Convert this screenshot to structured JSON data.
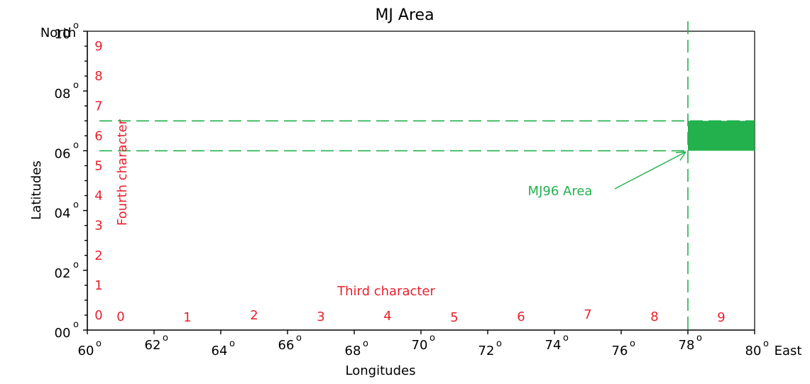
{
  "title": "MJ Area",
  "x_axis": {
    "label": "Longitudes",
    "ticks": [
      "60",
      "62",
      "64",
      "66",
      "68",
      "70",
      "72",
      "74",
      "76",
      "78",
      "80"
    ],
    "degree_mark": "o",
    "end_label": "East"
  },
  "y_axis": {
    "label": "Latitudes",
    "ticks": [
      "00",
      "02",
      "04",
      "06",
      "08",
      "10"
    ],
    "degree_mark": "o",
    "end_label": "North"
  },
  "third_character": {
    "label": "Third character",
    "digits": [
      "0",
      "1",
      "2",
      "3",
      "4",
      "5",
      "6",
      "7",
      "8",
      "9"
    ]
  },
  "fourth_character": {
    "label": "Fourth character",
    "digits": [
      "0",
      "1",
      "2",
      "3",
      "4",
      "5",
      "6",
      "7",
      "8",
      "9"
    ]
  },
  "highlight": {
    "label": "MJ96  Area",
    "lon_range": [
      78,
      80
    ],
    "lat_range": [
      6,
      7
    ]
  },
  "colors": {
    "axis": "#000000",
    "digits": "#e8222e",
    "guide": "#22b14c",
    "highlight_fill": "#22b14c",
    "annotation": "#22b14c"
  }
}
